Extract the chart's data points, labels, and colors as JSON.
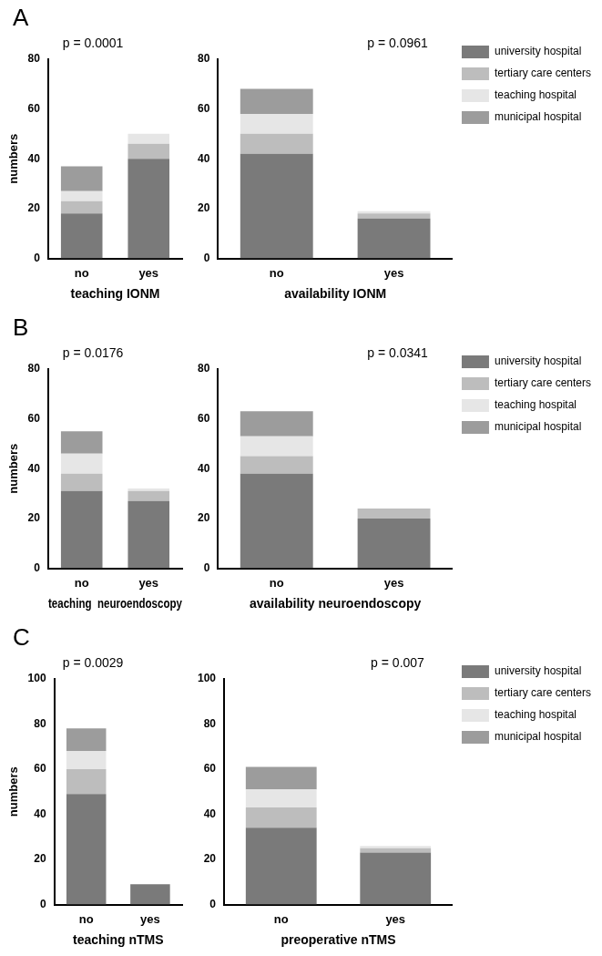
{
  "chart_data": [
    {
      "type": "bar",
      "stacked": true,
      "title": "p = 0.0001",
      "xlabel": "teaching IONM",
      "ylabel": "numbers",
      "annotations": [
        "A"
      ],
      "categories": [
        "no",
        "yes"
      ],
      "ylim": [
        0,
        80
      ],
      "yticks": [
        0,
        20,
        40,
        60,
        80
      ],
      "series": [
        {
          "color": "#7a7a7a",
          "values": [
            18,
            40
          ]
        },
        {
          "color": "#bdbdbd",
          "values": [
            5,
            6
          ]
        },
        {
          "color": "#e6e6e6",
          "values": [
            4,
            4
          ]
        },
        {
          "color": "#9c9c9c",
          "values": [
            10,
            0
          ]
        }
      ]
    },
    {
      "type": "bar",
      "stacked": true,
      "title": "p = 0.0961",
      "xlabel": "availability IONM",
      "legend": "right",
      "categories": [
        "no",
        "yes"
      ],
      "ylim": [
        0,
        80
      ],
      "yticks": [
        0,
        20,
        40,
        60,
        80
      ],
      "series": [
        {
          "name": "university hospital",
          "color": "#7a7a7a",
          "values": [
            42,
            16
          ]
        },
        {
          "name": "tertiary care centers",
          "color": "#bdbdbd",
          "values": [
            8,
            2
          ]
        },
        {
          "name": "teaching hospital",
          "color": "#e6e6e6",
          "values": [
            8,
            1
          ]
        },
        {
          "name": "municipal hospital",
          "color": "#9c9c9c",
          "values": [
            10,
            0
          ]
        }
      ]
    },
    {
      "type": "bar",
      "stacked": true,
      "title": "p = 0.0176",
      "xlabel": "teaching  neuroendoscopy",
      "ylabel": "numbers",
      "annotations": [
        "B"
      ],
      "categories": [
        "no",
        "yes"
      ],
      "ylim": [
        0,
        80
      ],
      "yticks": [
        0,
        20,
        40,
        60,
        80
      ],
      "series": [
        {
          "color": "#7a7a7a",
          "values": [
            31,
            27
          ]
        },
        {
          "color": "#bdbdbd",
          "values": [
            7,
            4
          ]
        },
        {
          "color": "#e6e6e6",
          "values": [
            8,
            1
          ]
        },
        {
          "color": "#9c9c9c",
          "values": [
            9,
            0
          ]
        }
      ]
    },
    {
      "type": "bar",
      "stacked": true,
      "title": "p = 0.0341",
      "xlabel": "availability neuroendoscopy",
      "legend": "right",
      "categories": [
        "no",
        "yes"
      ],
      "ylim": [
        0,
        80
      ],
      "yticks": [
        0,
        20,
        40,
        60,
        80
      ],
      "series": [
        {
          "name": "university hospital",
          "color": "#7a7a7a",
          "values": [
            38,
            20
          ]
        },
        {
          "name": "tertiary care centers",
          "color": "#bdbdbd",
          "values": [
            7,
            4
          ]
        },
        {
          "name": "teaching hospital",
          "color": "#e6e6e6",
          "values": [
            8,
            0
          ]
        },
        {
          "name": "municipal hospital",
          "color": "#9c9c9c",
          "values": [
            10,
            0
          ]
        }
      ]
    },
    {
      "type": "bar",
      "stacked": true,
      "title": "p = 0.0029",
      "xlabel": "teaching nTMS",
      "ylabel": "numbers",
      "annotations": [
        "C"
      ],
      "categories": [
        "no",
        "yes"
      ],
      "ylim": [
        0,
        100
      ],
      "yticks": [
        0,
        20,
        40,
        60,
        80,
        100
      ],
      "series": [
        {
          "color": "#7a7a7a",
          "values": [
            49,
            9
          ]
        },
        {
          "color": "#bdbdbd",
          "values": [
            11,
            0
          ]
        },
        {
          "color": "#e6e6e6",
          "values": [
            8,
            0
          ]
        },
        {
          "color": "#9c9c9c",
          "values": [
            10,
            0
          ]
        }
      ]
    },
    {
      "type": "bar",
      "stacked": true,
      "title": "p = 0.007",
      "xlabel": "preoperative nTMS",
      "legend": "right",
      "categories": [
        "no",
        "yes"
      ],
      "ylim": [
        0,
        100
      ],
      "yticks": [
        0,
        20,
        40,
        60,
        80,
        100
      ],
      "series": [
        {
          "name": "university hospital",
          "color": "#7a7a7a",
          "values": [
            34,
            23
          ]
        },
        {
          "name": "tertiary care centers",
          "color": "#bdbdbd",
          "values": [
            9,
            2
          ]
        },
        {
          "name": "teaching hospital",
          "color": "#e6e6e6",
          "values": [
            8,
            1
          ]
        },
        {
          "name": "municipal hospital",
          "color": "#9c9c9c",
          "values": [
            10,
            0
          ]
        }
      ]
    }
  ]
}
